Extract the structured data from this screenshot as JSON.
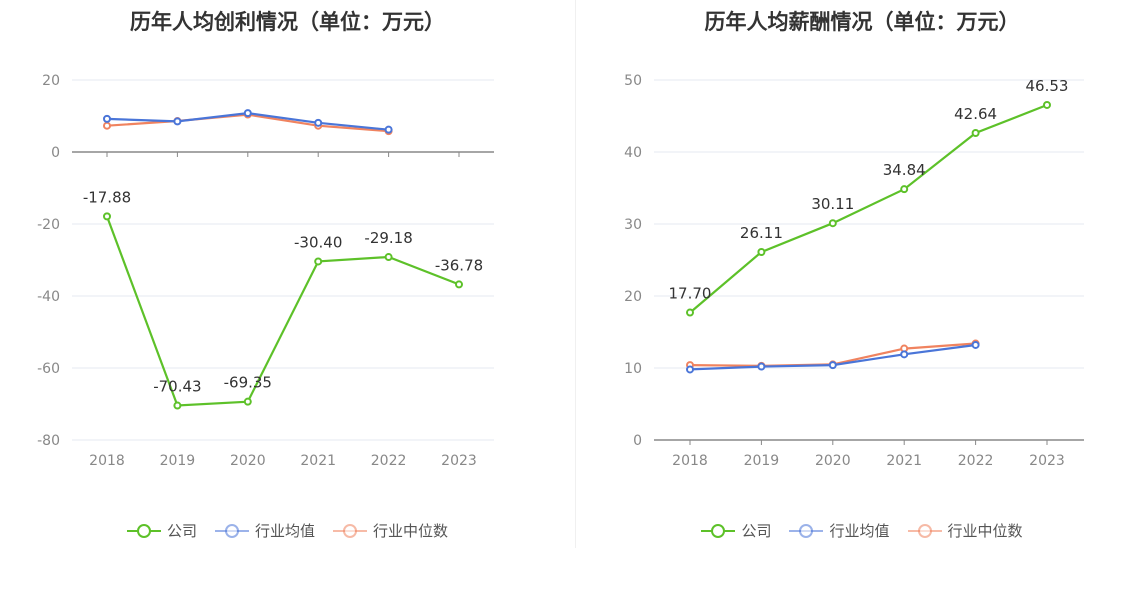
{
  "colors": {
    "company": "#5dc129",
    "industry_avg": "#4a75d8",
    "industry_median": "#f0835f",
    "grid": "#e4e8f2",
    "axis": "#888888"
  },
  "legend": {
    "company": "公司",
    "industry_avg": "行业均值",
    "industry_median": "行业中位数"
  },
  "chart_data": [
    {
      "type": "line",
      "title": "历年人均创利情况（单位：万元）",
      "x": [
        "2018",
        "2019",
        "2020",
        "2021",
        "2022",
        "2023"
      ],
      "yticks": [
        "20",
        "0",
        "-20",
        "-40",
        "-60",
        "-80"
      ],
      "ylim": [
        -80,
        20
      ],
      "series": [
        {
          "name": "公司",
          "key": "company",
          "values": [
            -17.88,
            -70.43,
            -69.35,
            -30.4,
            -29.18,
            -36.78
          ],
          "labels": [
            "-17.88",
            "-70.43",
            "-69.35",
            "-30.40",
            "-29.18",
            "-36.78"
          ]
        },
        {
          "name": "行业均值",
          "key": "industry_avg",
          "values": [
            9.2,
            8.5,
            10.8,
            8.1,
            6.2,
            null
          ]
        },
        {
          "name": "行业中位数",
          "key": "industry_median",
          "values": [
            7.3,
            8.6,
            10.4,
            7.3,
            5.8,
            null
          ]
        }
      ],
      "grid": true,
      "legend_position": "bottom"
    },
    {
      "type": "line",
      "title": "历年人均薪酬情况（单位：万元）",
      "x": [
        "2018",
        "2019",
        "2020",
        "2021",
        "2022",
        "2023"
      ],
      "yticks": [
        "50",
        "40",
        "30",
        "20",
        "10",
        "0"
      ],
      "ylim": [
        0,
        50
      ],
      "series": [
        {
          "name": "公司",
          "key": "company",
          "values": [
            17.7,
            26.11,
            30.11,
            34.84,
            42.64,
            46.53
          ],
          "labels": [
            "17.70",
            "26.11",
            "30.11",
            "34.84",
            "42.64",
            "46.53"
          ]
        },
        {
          "name": "行业均值",
          "key": "industry_avg",
          "values": [
            9.8,
            10.2,
            10.4,
            11.9,
            13.2,
            null
          ]
        },
        {
          "name": "行业中位数",
          "key": "industry_median",
          "values": [
            10.4,
            10.3,
            10.5,
            12.7,
            13.4,
            null
          ]
        }
      ],
      "grid": true,
      "legend_position": "bottom"
    }
  ]
}
